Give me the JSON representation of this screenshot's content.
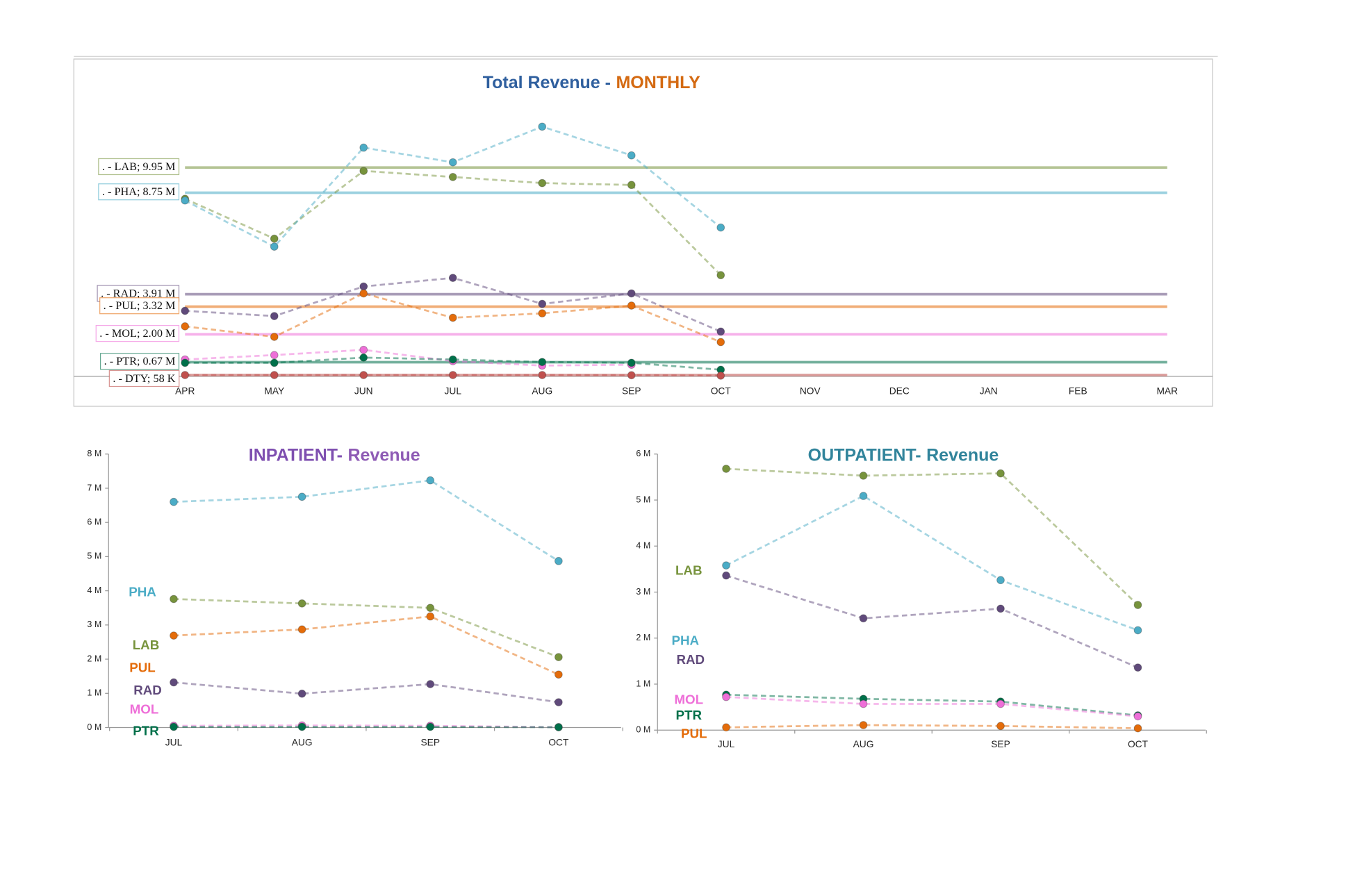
{
  "chart_data": [
    {
      "type": "line",
      "title": [
        "Total Revenue -",
        "MONTHLY"
      ],
      "title_colors": [
        "#2f5f9e",
        "#d46a12"
      ],
      "categories": [
        "APR",
        "MAY",
        "JUN",
        "JUL",
        "AUG",
        "SEP",
        "OCT",
        "NOV",
        "DEC",
        "JAN",
        "FEB",
        "MAR"
      ],
      "ylim": [
        0,
        13
      ],
      "series": [
        {
          "name": "LAB",
          "color": "#77933c",
          "values": [
            8.46,
            6.56,
            9.79,
            9.5,
            9.21,
            9.12,
            4.82,
            null,
            null,
            null,
            null,
            null
          ],
          "average": 9.95,
          "average_label": ". - LAB; 9.95 M"
        },
        {
          "name": "PHA",
          "color": "#4bacc6",
          "values": [
            8.38,
            6.18,
            10.9,
            10.2,
            11.9,
            10.53,
            7.09,
            null,
            null,
            null,
            null,
            null
          ],
          "average": 8.75,
          "average_label": ". - PHA; 8.75 M"
        },
        {
          "name": "RAD",
          "color": "#604a7b",
          "values": [
            3.12,
            2.87,
            4.28,
            4.69,
            3.45,
            3.95,
            2.13,
            null,
            null,
            null,
            null,
            null
          ],
          "average": 3.91,
          "average_label": ". - RAD; 3.91 M"
        },
        {
          "name": "PUL",
          "color": "#e46c0a",
          "values": [
            2.38,
            1.88,
            3.95,
            2.79,
            3.0,
            3.37,
            1.63,
            null,
            null,
            null,
            null,
            null
          ],
          "average": 3.32,
          "average_label": ". - PUL; 3.32 M"
        },
        {
          "name": "MOL",
          "color": "#ee6fd8",
          "values": [
            0.8,
            1.01,
            1.26,
            0.72,
            0.51,
            0.55,
            null,
            null,
            null,
            null,
            null,
            null
          ],
          "average": 2.0,
          "average_label": ". - MOL; 2.00 M"
        },
        {
          "name": "PTR",
          "color": "#00704a",
          "values": [
            0.64,
            0.64,
            0.89,
            0.8,
            0.68,
            0.64,
            0.31,
            null,
            null,
            null,
            null,
            null
          ],
          "average": 0.67,
          "average_label": ". - PTR; 0.67 M"
        },
        {
          "name": "DTY",
          "color": "#c0504d",
          "values": [
            0.06,
            0.06,
            0.06,
            0.06,
            0.06,
            0.05,
            0.03,
            null,
            null,
            null,
            null,
            null
          ],
          "average": 0.058,
          "average_label": ". - DTY; 58 K"
        }
      ]
    },
    {
      "type": "line",
      "title": [
        "INPATIENT-",
        "Revenue"
      ],
      "title_colors": [
        "#7e4fb0",
        "#8e5bb5"
      ],
      "categories": [
        "JUL",
        "AUG",
        "SEP",
        "OCT"
      ],
      "ylim": [
        0,
        8
      ],
      "yticks": [
        {
          "value": 0,
          "label": "0 M"
        },
        {
          "value": 1,
          "label": "1 M"
        },
        {
          "value": 2,
          "label": "2 M"
        },
        {
          "value": 3,
          "label": "3 M"
        },
        {
          "value": 4,
          "label": "4 M"
        },
        {
          "value": 5,
          "label": "5 M"
        },
        {
          "value": 6,
          "label": "6 M"
        },
        {
          "value": 7,
          "label": "7 M"
        },
        {
          "value": 8,
          "label": "8 M"
        }
      ],
      "series": [
        {
          "name": "PHA",
          "color": "#4bacc6",
          "values": [
            6.6,
            6.75,
            7.23,
            4.87
          ]
        },
        {
          "name": "LAB",
          "color": "#77933c",
          "values": [
            3.76,
            3.63,
            3.5,
            2.06
          ]
        },
        {
          "name": "PUL",
          "color": "#e46c0a",
          "values": [
            2.69,
            2.87,
            3.25,
            1.55
          ]
        },
        {
          "name": "RAD",
          "color": "#604a7b",
          "values": [
            1.32,
            0.99,
            1.27,
            0.74
          ]
        },
        {
          "name": "MOL",
          "color": "#ee6fd8",
          "values": [
            0.05,
            0.06,
            0.05,
            0.01
          ]
        },
        {
          "name": "PTR",
          "color": "#00704a",
          "values": [
            0.02,
            0.02,
            0.02,
            0.01
          ]
        }
      ]
    },
    {
      "type": "line",
      "title": [
        "OUTPATIENT-",
        "Revenue"
      ],
      "title_colors": [
        "#31849b",
        "#31849b"
      ],
      "categories": [
        "JUL",
        "AUG",
        "SEP",
        "OCT"
      ],
      "ylim": [
        0,
        6
      ],
      "yticks": [
        {
          "value": 0,
          "label": "0 M"
        },
        {
          "value": 1,
          "label": "1 M"
        },
        {
          "value": 2,
          "label": "2 M"
        },
        {
          "value": 3,
          "label": "3 M"
        },
        {
          "value": 4,
          "label": "4 M"
        },
        {
          "value": 5,
          "label": "5 M"
        },
        {
          "value": 6,
          "label": "6 M"
        }
      ],
      "series": [
        {
          "name": "LAB",
          "color": "#77933c",
          "values": [
            5.68,
            5.53,
            5.58,
            2.72
          ]
        },
        {
          "name": "PHA",
          "color": "#4bacc6",
          "values": [
            3.58,
            5.09,
            3.26,
            2.17
          ]
        },
        {
          "name": "RAD",
          "color": "#604a7b",
          "values": [
            3.36,
            2.43,
            2.64,
            1.36
          ]
        },
        {
          "name": "PTR",
          "color": "#00704a",
          "values": [
            0.77,
            0.68,
            0.62,
            0.32
          ]
        },
        {
          "name": "MOL",
          "color": "#ee6fd8",
          "values": [
            0.72,
            0.57,
            0.57,
            0.3
          ]
        },
        {
          "name": "PUL",
          "color": "#e46c0a",
          "values": [
            0.06,
            0.11,
            0.09,
            0.04
          ]
        }
      ]
    }
  ]
}
